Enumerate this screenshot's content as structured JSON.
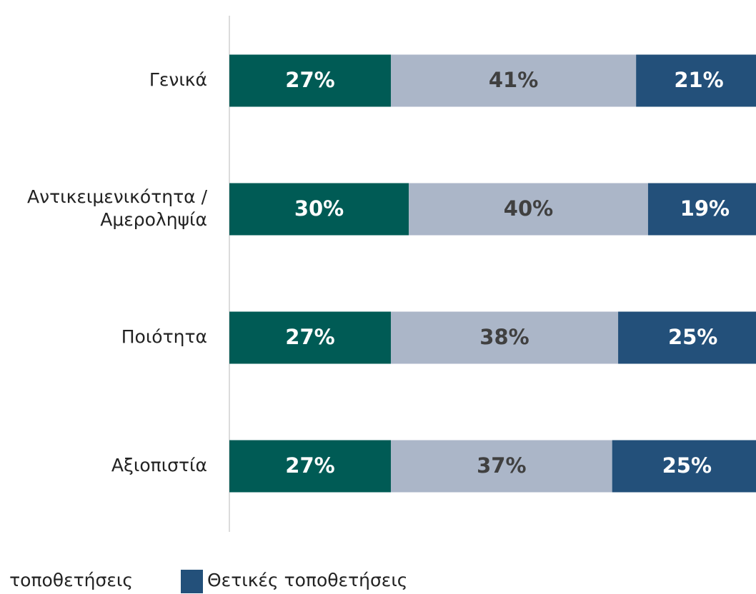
{
  "chart_data": {
    "type": "stacked_barh",
    "categories": [
      "Γενικά",
      [
        "Αντικειμενικότητα /",
        "Αμεροληψία"
      ],
      "Ποιότητα",
      "Αξιοπιστία"
    ],
    "series": [
      {
        "color": "#005b55",
        "label_color": "#ffffff",
        "values": [
          27,
          30,
          27,
          27
        ],
        "value_labels": [
          "27%",
          "30%",
          "27%",
          "27%"
        ]
      },
      {
        "name": "τοποθετήσεις",
        "color": "#abb6c8",
        "label_color": "#404040",
        "values": [
          41,
          40,
          38,
          37
        ],
        "value_labels": [
          "41%",
          "40%",
          "38%",
          "37%"
        ]
      },
      {
        "name": "Θετικές τοποθετήσεις",
        "color": "#23507a",
        "label_color": "#ffffff",
        "values": [
          21,
          19,
          25,
          25
        ],
        "value_labels": [
          "21%",
          "19%",
          "25%",
          "25%"
        ]
      }
    ],
    "xlim": [
      0,
      100
    ]
  }
}
